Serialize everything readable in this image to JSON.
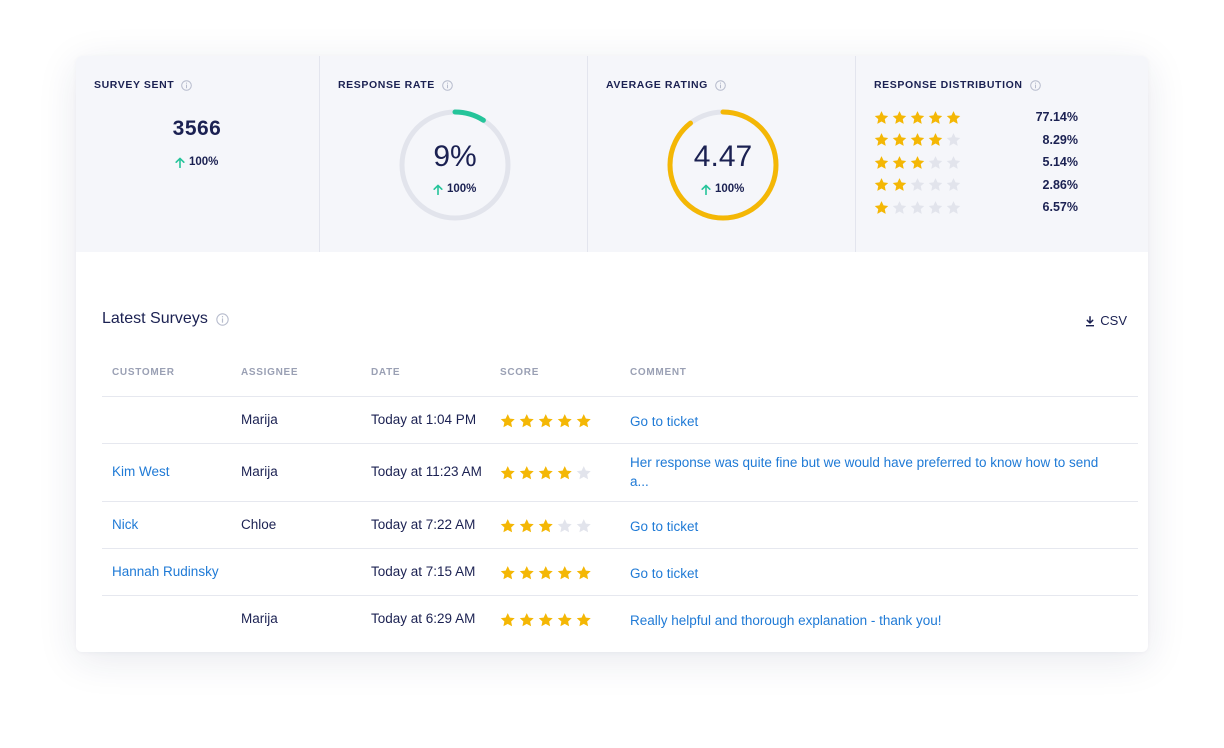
{
  "colors": {
    "accent_green": "#25c49a",
    "star_gold": "#f4b705",
    "star_empty": "#e2e4ec",
    "link_blue": "#1f7ad6",
    "text_dark": "#1b2152"
  },
  "stats": {
    "survey_sent": {
      "title": "SURVEY SENT",
      "value": "3566",
      "delta": "100%"
    },
    "response_rate": {
      "title": "RESPONSE RATE",
      "value": "9%",
      "delta": "100%",
      "fraction": 0.09
    },
    "average_rating": {
      "title": "AVERAGE RATING",
      "value": "4.47",
      "delta": "100%",
      "fraction": 0.894
    },
    "distribution": {
      "title": "RESPONSE DISTRIBUTION",
      "rows": [
        {
          "stars": 5,
          "pct": "77.14%"
        },
        {
          "stars": 4,
          "pct": "8.29%"
        },
        {
          "stars": 3,
          "pct": "5.14%"
        },
        {
          "stars": 2,
          "pct": "2.86%"
        },
        {
          "stars": 1,
          "pct": "6.57%"
        }
      ]
    }
  },
  "latest": {
    "title": "Latest Surveys",
    "csv_label": "CSV",
    "columns": [
      "CUSTOMER",
      "ASSIGNEE",
      "DATE",
      "SCORE",
      "COMMENT"
    ],
    "rows": [
      {
        "customer": "",
        "assignee": "Marija",
        "date": "Today at 1:04 PM",
        "score": 5,
        "comment": "Go to ticket"
      },
      {
        "customer": "Kim West",
        "assignee": "Marija",
        "date": "Today at 11:23 AM",
        "score": 4,
        "comment": "Her response was quite fine but we would have preferred to know how to send a..."
      },
      {
        "customer": "Nick",
        "assignee": "Chloe",
        "date": "Today at 7:22 AM",
        "score": 3,
        "comment": "Go to ticket"
      },
      {
        "customer": "Hannah Rudinsky",
        "assignee": "",
        "date": "Today at 7:15 AM",
        "score": 5,
        "comment": "Go to ticket"
      },
      {
        "customer": "",
        "assignee": "Marija",
        "date": "Today at 6:29 AM",
        "score": 5,
        "comment": "Really helpful and thorough explanation - thank you!"
      }
    ]
  }
}
